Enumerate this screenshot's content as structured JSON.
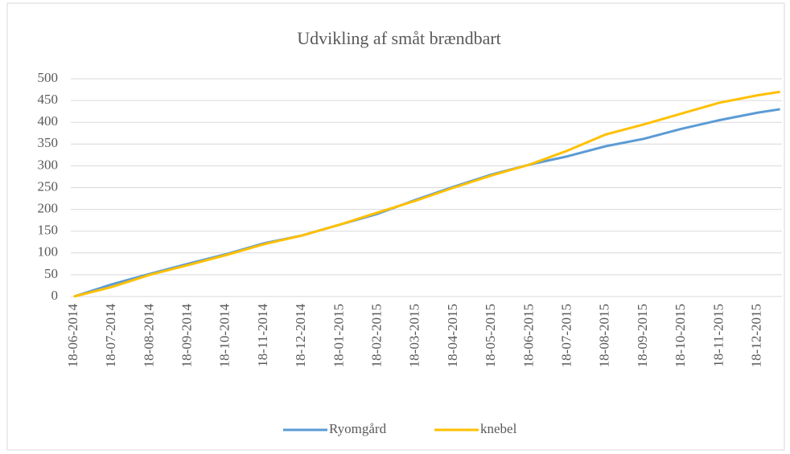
{
  "chart_data": {
    "type": "line",
    "title": "Udvikling af småt brændbart",
    "categories": [
      "18-06-2014",
      "18-07-2014",
      "18-08-2014",
      "18-09-2014",
      "18-10-2014",
      "18-11-2014",
      "18-12-2014",
      "18-01-2015",
      "18-02-2015",
      "18-03-2015",
      "18-04-2015",
      "18-05-2015",
      "18-06-2015",
      "18-07-2015",
      "18-08-2015",
      "18-09-2015",
      "18-10-2015",
      "18-11-2015",
      "18-12-2015",
      null
    ],
    "series": [
      {
        "name": "Ryomgård",
        "color": "#5b9bd5",
        "values": [
          0,
          28,
          52,
          75,
          97,
          122,
          140,
          165,
          190,
          222,
          252,
          280,
          303,
          322,
          345,
          362,
          385,
          405,
          422,
          430
        ]
      },
      {
        "name": "knebel",
        "color": "#ffc000",
        "values": [
          0,
          22,
          50,
          72,
          95,
          120,
          140,
          165,
          193,
          220,
          250,
          278,
          303,
          335,
          372,
          395,
          420,
          445,
          462,
          470
        ]
      }
    ],
    "ylim": [
      0,
      500
    ],
    "yticks": [
      0,
      50,
      100,
      150,
      200,
      250,
      300,
      350,
      400,
      450,
      500
    ],
    "grid": true,
    "legend": "bottom"
  }
}
